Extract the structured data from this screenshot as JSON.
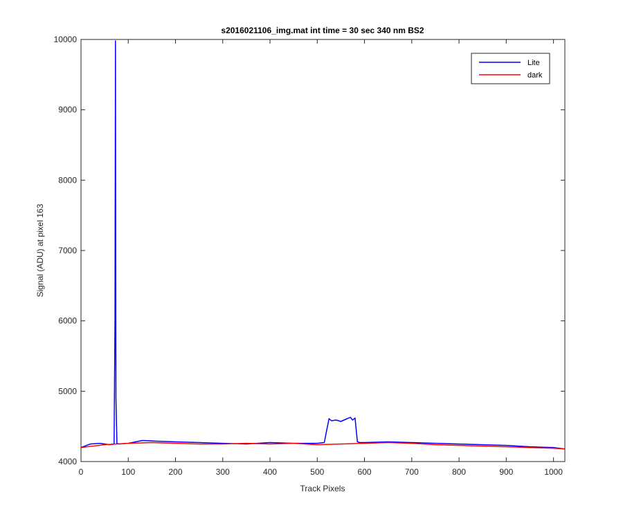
{
  "chart_data": {
    "type": "line",
    "title": "s2016021106_img.mat int time = 30 sec  340 nm BS2",
    "xlabel": "Track Pixels",
    "ylabel": "Signal (ADU) at pixel 163",
    "xlim": [
      0,
      1024
    ],
    "ylim": [
      4000,
      10000
    ],
    "xticks": [
      0,
      100,
      200,
      300,
      400,
      500,
      600,
      700,
      800,
      900,
      1000
    ],
    "yticks": [
      4000,
      5000,
      6000,
      7000,
      8000,
      9000,
      10000
    ],
    "legend_placement": "top-right",
    "grid": false,
    "series": [
      {
        "name": "Lite",
        "color": "#0000ff",
        "x": [
          0,
          20,
          40,
          60,
          70,
          72,
          73,
          74,
          76,
          80,
          100,
          130,
          160,
          200,
          250,
          300,
          350,
          400,
          450,
          500,
          515,
          520,
          525,
          530,
          540,
          550,
          560,
          570,
          575,
          580,
          585,
          590,
          600,
          650,
          700,
          750,
          800,
          850,
          900,
          950,
          1000,
          1024
        ],
        "y": [
          4200,
          4250,
          4260,
          4240,
          4250,
          6000,
          9980,
          4900,
          4260,
          4250,
          4260,
          4300,
          4290,
          4280,
          4270,
          4260,
          4250,
          4270,
          4260,
          4260,
          4270,
          4450,
          4610,
          4580,
          4590,
          4570,
          4600,
          4630,
          4590,
          4620,
          4280,
          4270,
          4270,
          4280,
          4270,
          4260,
          4250,
          4240,
          4230,
          4210,
          4200,
          4180
        ]
      },
      {
        "name": "dark",
        "color": "#ff0000",
        "x": [
          0,
          50,
          100,
          150,
          200,
          250,
          300,
          350,
          400,
          450,
          500,
          550,
          600,
          650,
          700,
          750,
          800,
          850,
          900,
          950,
          1000,
          1024
        ],
        "y": [
          4200,
          4240,
          4260,
          4270,
          4260,
          4250,
          4250,
          4260,
          4250,
          4260,
          4240,
          4250,
          4260,
          4270,
          4260,
          4240,
          4230,
          4220,
          4210,
          4200,
          4190,
          4180
        ]
      }
    ]
  }
}
